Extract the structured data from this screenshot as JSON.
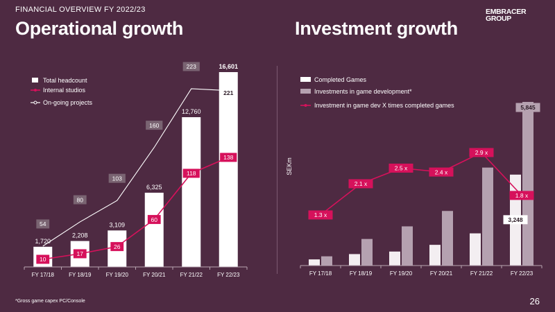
{
  "header": {
    "kicker": "FINANCIAL OVERVIEW FY 2022/23",
    "left_title": "Operational growth",
    "right_title": "Investment growth",
    "logo_line1": "EMBRACER",
    "logo_line2": "GROUP"
  },
  "footer": {
    "footnote": "*Gross game capex PC/Console",
    "page_number": "26"
  },
  "colors": {
    "background": "#4e2a42",
    "bar_white": "#ffffff",
    "bar_light": "#f3eef1",
    "bar_mauve": "#b5a1b0",
    "accent_pink": "#d6115b",
    "label_box_grey": "#7a6472",
    "axis": "#b9a6b3"
  },
  "chart_data": [
    {
      "type": "bar",
      "categories": [
        "FY 17/18",
        "FY 18/19",
        "FY 19/20",
        "FY 20/21",
        "FY 21/22",
        "FY 22/23"
      ],
      "ylim": [
        0,
        16601
      ],
      "series": [
        {
          "name": "Total headcount",
          "type": "bar",
          "values": [
            1720,
            2208,
            3109,
            6325,
            12760,
            16601
          ],
          "labels": [
            "1,720",
            "2,208",
            "3,109",
            "6,325",
            "12,760",
            "16,601"
          ]
        },
        {
          "name": "Internal studios",
          "type": "line",
          "values": [
            10,
            17,
            26,
            60,
            118,
            138
          ]
        },
        {
          "name": "On-going projects",
          "type": "line",
          "values": [
            54,
            80,
            103,
            160,
            223,
            221
          ]
        }
      ],
      "legend": "top-left"
    },
    {
      "type": "bar",
      "categories": [
        "FY 17/18",
        "FY 18/19",
        "FY 19/20",
        "FY 20/21",
        "FY 21/22",
        "FY 22/23"
      ],
      "ylabel": "SEKm",
      "ylim": [
        0,
        5845
      ],
      "series": [
        {
          "name": "Completed Games",
          "type": "bar",
          "values": [
            220,
            410,
            500,
            740,
            1150,
            3248
          ],
          "labels": [
            "",
            "",
            "",
            "",
            "",
            "3,248"
          ]
        },
        {
          "name": "Investments in game development*",
          "type": "bar",
          "values": [
            330,
            950,
            1400,
            1950,
            3500,
            5845
          ],
          "labels": [
            "",
            "",
            "",
            "",
            "",
            "5,845"
          ]
        },
        {
          "name": "Investment in game dev X times completed games",
          "type": "line",
          "values": [
            1.3,
            2.1,
            2.5,
            2.4,
            2.9,
            1.8
          ],
          "labels": [
            "1.3 x",
            "2.1 x",
            "2.5 x",
            "2.4 x",
            "2.9 x",
            "1.8 x"
          ]
        }
      ],
      "legend": "top-left"
    }
  ]
}
